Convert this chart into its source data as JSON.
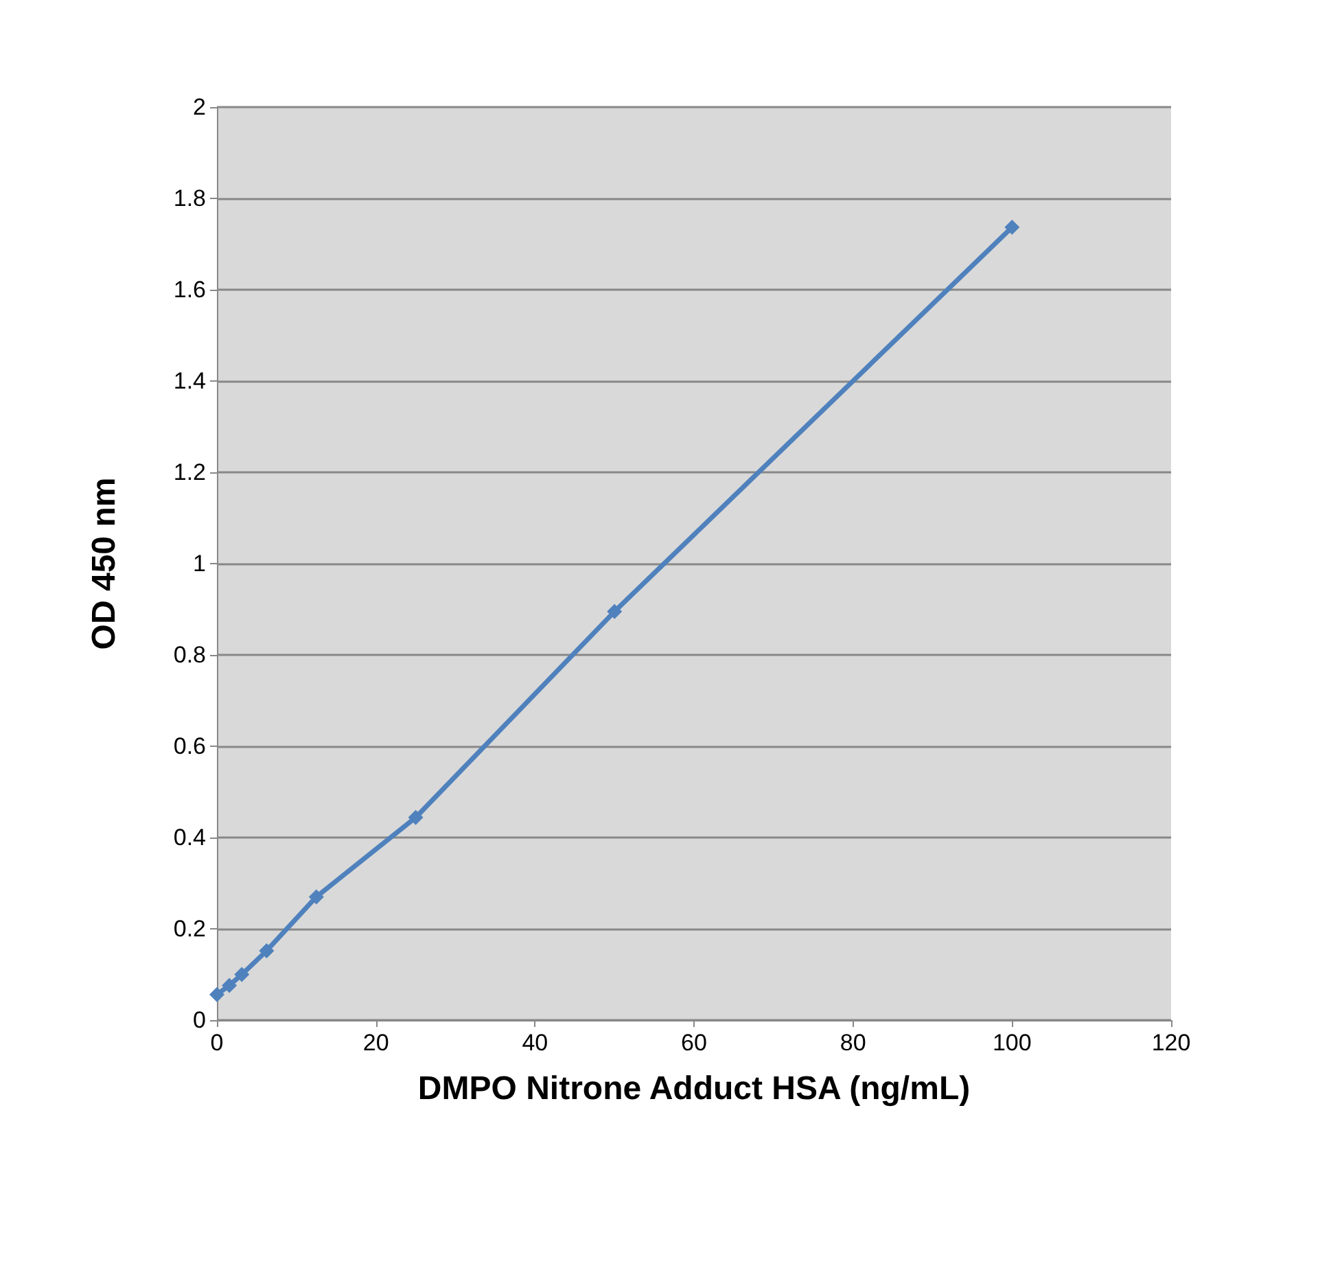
{
  "chart_data": {
    "type": "line",
    "xlabel": "DMPO Nitrone Adduct HSA (ng/mL)",
    "ylabel": "OD 450 nm",
    "x": [
      0,
      1.56,
      3.13,
      6.25,
      12.5,
      25,
      50,
      100
    ],
    "series": [
      {
        "color": "#4f81bd",
        "values": [
          0.056,
          0.076,
          0.1,
          0.152,
          0.27,
          0.444,
          0.895,
          1.737
        ]
      }
    ],
    "xlim": [
      0,
      120
    ],
    "xticks": [
      0,
      20,
      40,
      60,
      80,
      100,
      120
    ],
    "ylim": [
      0,
      2
    ],
    "yticks": [
      0,
      0.2,
      0.4,
      0.6,
      0.8,
      1,
      1.2,
      1.4,
      1.6,
      1.8,
      2
    ],
    "grid": "y",
    "marker": "diamond",
    "line_style": "solid"
  }
}
